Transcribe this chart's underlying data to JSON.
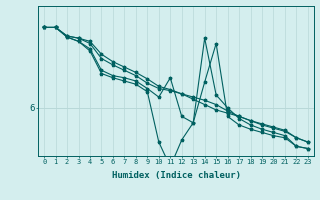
{
  "background_color": "#d4eeee",
  "line_color": "#006060",
  "grid_color": "#b8d8d8",
  "xlabel": "Humidex (Indice chaleur)",
  "ylabel_tick": "6",
  "xlim": [
    -0.5,
    23.5
  ],
  "ylim": [
    5.55,
    6.95
  ],
  "ytick_value": 6.0,
  "series": [
    {
      "x": [
        0,
        1,
        2,
        3,
        4,
        5,
        6,
        7,
        8,
        9,
        10,
        11,
        12,
        13,
        14,
        15,
        16,
        17,
        18,
        19,
        20,
        21,
        22,
        23
      ],
      "y": [
        6.75,
        6.75,
        6.67,
        6.65,
        6.62,
        6.5,
        6.43,
        6.38,
        6.33,
        6.27,
        6.2,
        6.17,
        6.13,
        6.08,
        6.03,
        5.98,
        5.95,
        5.92,
        5.88,
        5.85,
        5.82,
        5.79,
        5.72,
        5.68
      ]
    },
    {
      "x": [
        0,
        1,
        2,
        3,
        4,
        5,
        6,
        7,
        8,
        9,
        10,
        11,
        12,
        13,
        14,
        15,
        16,
        17,
        18,
        19,
        20,
        21,
        22,
        23
      ],
      "y": [
        6.75,
        6.75,
        6.67,
        6.65,
        6.6,
        6.46,
        6.4,
        6.35,
        6.3,
        6.23,
        6.18,
        6.16,
        6.13,
        6.1,
        6.07,
        6.03,
        5.97,
        5.92,
        5.88,
        5.84,
        5.81,
        5.78,
        5.72,
        5.68
      ]
    },
    {
      "x": [
        0,
        1,
        2,
        3,
        4,
        5,
        6,
        7,
        8,
        9,
        10,
        11,
        12,
        13,
        14,
        15,
        16,
        17,
        18,
        19,
        20,
        21,
        22,
        23
      ],
      "y": [
        6.75,
        6.75,
        6.66,
        6.62,
        6.55,
        6.35,
        6.3,
        6.28,
        6.25,
        6.18,
        6.1,
        6.28,
        5.92,
        5.86,
        6.65,
        6.12,
        6.0,
        5.9,
        5.84,
        5.8,
        5.77,
        5.74,
        5.64,
        5.62
      ]
    },
    {
      "x": [
        0,
        1,
        2,
        3,
        4,
        5,
        6,
        7,
        8,
        9,
        10,
        11,
        12,
        13,
        14,
        15,
        16,
        17,
        18,
        19,
        20,
        21,
        22,
        23
      ],
      "y": [
        6.75,
        6.75,
        6.66,
        6.62,
        6.53,
        6.32,
        6.28,
        6.25,
        6.22,
        6.15,
        5.68,
        5.45,
        5.7,
        5.86,
        6.24,
        6.6,
        5.92,
        5.84,
        5.8,
        5.77,
        5.74,
        5.72,
        5.64,
        5.62
      ]
    }
  ]
}
